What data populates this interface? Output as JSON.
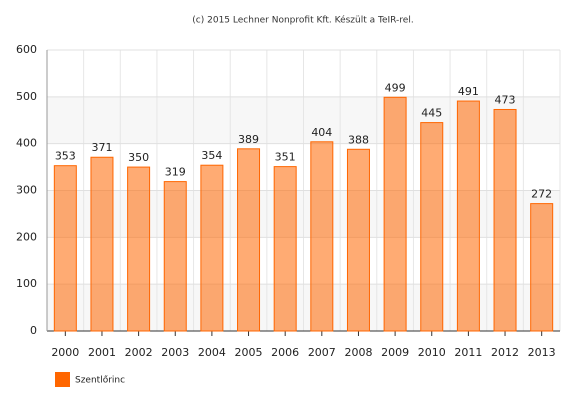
{
  "chart_data": {
    "type": "bar",
    "title": "(c) 2015 Lechner Nonprofit Kft. Készült a TeIR-rel.",
    "categories": [
      "2000",
      "2001",
      "2002",
      "2003",
      "2004",
      "2005",
      "2006",
      "2007",
      "2008",
      "2009",
      "2010",
      "2011",
      "2012",
      "2013"
    ],
    "series": [
      {
        "name": "Szentlőrinc",
        "color": "#ff6600",
        "values": [
          353,
          371,
          350,
          319,
          354,
          389,
          351,
          404,
          388,
          499,
          445,
          491,
          473,
          272
        ]
      }
    ],
    "ylim": [
      0,
      600
    ],
    "yticks": [
      0,
      100,
      200,
      300,
      400,
      500,
      600
    ],
    "grid": true
  }
}
